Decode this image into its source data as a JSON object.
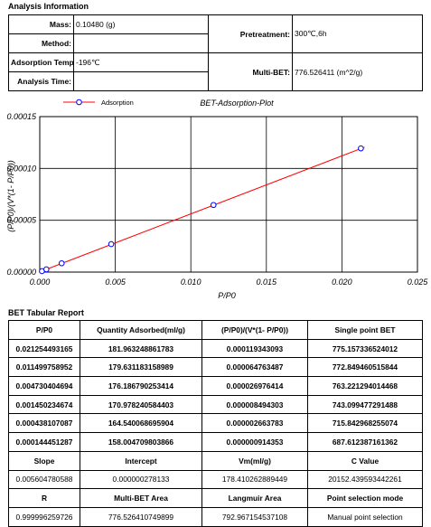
{
  "analysis": {
    "heading": "Analysis Information",
    "mass_label": "Mass:",
    "mass_value": "0.10480 (g)",
    "method_label": "Method:",
    "method_value": "",
    "temp_label": "Adsorption Temp.:",
    "temp_value": "-196℃",
    "time_label": "Analysis Time:",
    "time_value": "",
    "pretreat_label": "Pretreatment:",
    "pretreat_value": "300℃,6h",
    "multibet_label": "Multi-BET:",
    "multibet_value": "776.526411 (m^2/g)"
  },
  "chart_data": {
    "type": "line",
    "title": "BET-Adsorption-Plot",
    "xlabel": "P/P0",
    "ylabel": "(P/P0)/(V*(1- P/P0))",
    "legend_position": "top-left",
    "legend_label": "Adsorption",
    "xlim": [
      0,
      0.025
    ],
    "ylim": [
      0,
      0.00015
    ],
    "xticks": [
      "0.000",
      "0.005",
      "0.010",
      "0.015",
      "0.020",
      "0.025"
    ],
    "yticks": [
      "0.00000",
      "0.00005",
      "0.00010",
      "0.00015"
    ],
    "grid": true,
    "line_color": "#ff0000",
    "marker_color": "#0000ff",
    "series": [
      {
        "name": "Adsorption",
        "x": [
          0.000144451287,
          0.000438107087,
          0.001450234674,
          0.004730404694,
          0.011499758952,
          0.021254493165
        ],
        "y": [
          9.14353e-07,
          2.663783e-06,
          8.494303e-06,
          2.6976414e-05,
          6.4763487e-05,
          0.000119343093
        ]
      }
    ],
    "fit_line": {
      "x": [
        0.0,
        0.0215
      ],
      "y": [
        2e-07,
        0.0001205
      ]
    }
  },
  "bet_table": {
    "heading": "BET Tabular Report",
    "headers": [
      "P/P0",
      "Quantity Adsorbed(ml/g)",
      "(P/P0)/(V*(1- P/P0))",
      "Single point BET"
    ],
    "rows": [
      [
        "0.021254493165",
        "181.963248861783",
        "0.000119343093",
        "775.157336524012"
      ],
      [
        "0.011499758952",
        "179.631183158989",
        "0.000064763487",
        "772.849460515844"
      ],
      [
        "0.004730404694",
        "176.186790253414",
        "0.000026976414",
        "763.221294014468"
      ],
      [
        "0.001450234674",
        "170.978240584403",
        "0.000008494303",
        "743.099477291488"
      ],
      [
        "0.000438107087",
        "164.540068695904",
        "0.000002663783",
        "715.842968255074"
      ],
      [
        "0.000144451287",
        "158.004709803866",
        "0.000000914353",
        "687.612387161362"
      ]
    ],
    "stats_headers_1": [
      "Slope",
      "Intercept",
      "Vm(ml/g)",
      "C Value"
    ],
    "stats_values_1": [
      "0.005604780588",
      "0.000000278133",
      "178.410262889449",
      "20152.439593442261"
    ],
    "stats_headers_2": [
      "R",
      "Multi-BET Area",
      "Langmuir Area",
      "Point selection mode"
    ],
    "stats_values_2": [
      "0.999996259726",
      "776.526410749899",
      "792.967154537108",
      "Manual point selection"
    ]
  }
}
